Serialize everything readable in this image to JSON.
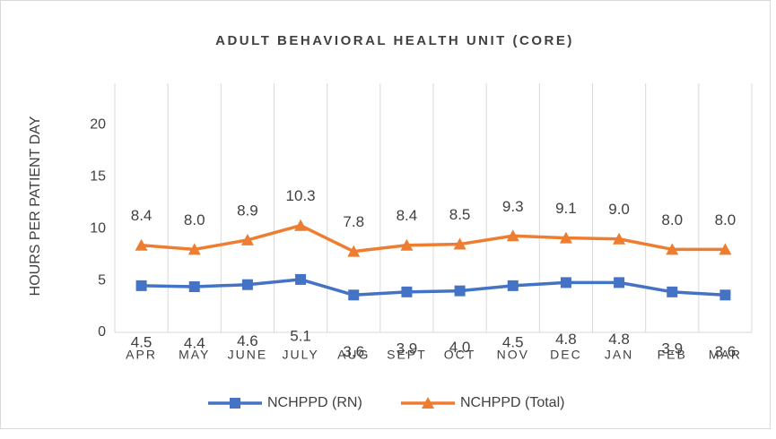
{
  "chart_data": {
    "type": "line",
    "title": "ADULT BEHAVIORAL HEALTH UNIT (CORE)",
    "y_label": "HOURS PER PATIENT DAY",
    "categories": [
      "APR",
      "MAY",
      "JUNE",
      "JULY",
      "AUG",
      "SEPT",
      "OCT",
      "NOV",
      "DEC",
      "JAN",
      "FEB",
      "MAR"
    ],
    "series": [
      {
        "name": "NCHPPD (RN)",
        "color": "#4472c4",
        "marker": "square",
        "values": [
          4.5,
          4.4,
          4.6,
          5.1,
          3.6,
          3.9,
          4.0,
          4.5,
          4.8,
          4.8,
          3.9,
          3.6
        ],
        "value_labels": [
          "4.5",
          "4.4",
          "4.6",
          "5.1",
          "3.6",
          "3.9",
          "4.0",
          "4.5",
          "4.8",
          "4.8",
          "3.9",
          "3.6"
        ]
      },
      {
        "name": "NCHPPD (Total)",
        "color": "#ed7d31",
        "marker": "triangle",
        "values": [
          8.4,
          8.0,
          8.9,
          10.3,
          7.8,
          8.4,
          8.5,
          9.3,
          9.1,
          9.0,
          8.0,
          8.0
        ],
        "value_labels": [
          "8.4",
          "8.0",
          "8.9",
          "10.3",
          "7.8",
          "8.4",
          "8.5",
          "9.3",
          "9.1",
          "9.0",
          "8.0",
          "8.0"
        ]
      }
    ],
    "ylim": [
      0,
      24
    ],
    "yticks": [
      0,
      5,
      10,
      15,
      20
    ],
    "grid": "vertical",
    "legend": "bottom"
  }
}
